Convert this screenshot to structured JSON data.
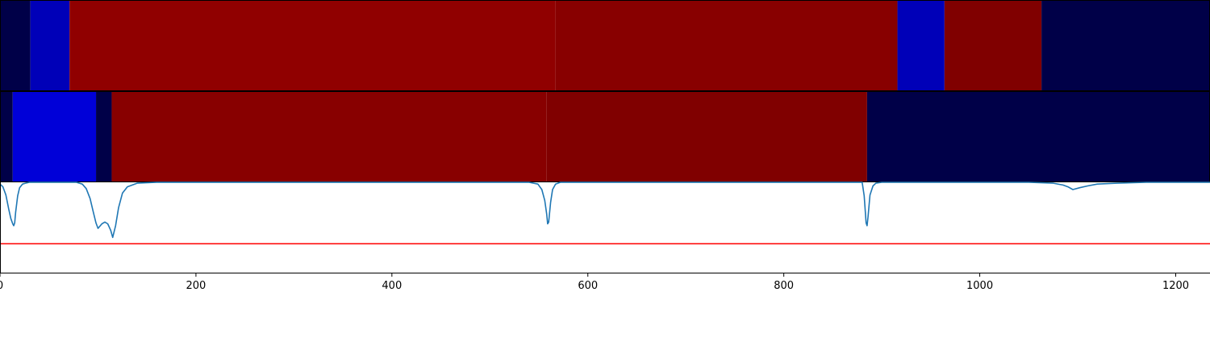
{
  "chart_data": [
    {
      "type": "heatmap",
      "xlim": [
        0,
        1235
      ],
      "segments": [
        {
          "start": 0,
          "end": 31,
          "color": "#000048"
        },
        {
          "start": 31,
          "end": 71,
          "color": "#0000b8"
        },
        {
          "start": 71,
          "end": 567,
          "color": "#900000"
        },
        {
          "start": 567,
          "end": 916,
          "color": "#880000"
        },
        {
          "start": 916,
          "end": 964,
          "color": "#0000b8"
        },
        {
          "start": 964,
          "end": 1063,
          "color": "#800000"
        },
        {
          "start": 1063,
          "end": 1235,
          "color": "#000048"
        }
      ]
    },
    {
      "type": "heatmap",
      "xlim": [
        0,
        1235
      ],
      "segments": [
        {
          "start": 0,
          "end": 13,
          "color": "#000048"
        },
        {
          "start": 13,
          "end": 98,
          "color": "#0000d8"
        },
        {
          "start": 98,
          "end": 114,
          "color": "#000048"
        },
        {
          "start": 114,
          "end": 558,
          "color": "#880000"
        },
        {
          "start": 558,
          "end": 885,
          "color": "#800000"
        },
        {
          "start": 885,
          "end": 1235,
          "color": "#000048"
        }
      ]
    },
    {
      "type": "line",
      "xlim": [
        0,
        1235
      ],
      "ylim": [
        -1.0,
        0.0
      ],
      "xticks": [
        "0",
        "200",
        "400",
        "600",
        "800",
        "1000",
        "1200"
      ],
      "xtick_values": [
        0,
        200,
        400,
        600,
        800,
        1000,
        1200
      ],
      "threshold": {
        "value": -0.68,
        "color": "#ff0000"
      },
      "series": [
        {
          "color": "#1f77b4",
          "x": [
            0,
            3,
            6,
            9,
            11,
            13,
            14,
            15,
            16,
            18,
            20,
            23,
            26,
            30,
            40,
            60,
            78,
            84,
            88,
            92,
            95,
            98,
            100,
            104,
            107,
            110,
            113,
            115,
            118,
            121,
            125,
            130,
            140,
            160,
            300,
            540,
            549,
            553,
            556,
            558,
            559,
            560,
            562,
            564,
            567,
            572,
            600,
            850,
            880,
            882,
            884,
            885,
            886,
            888,
            891,
            894,
            900,
            1050,
            1075,
            1085,
            1090,
            1095,
            1102,
            1110,
            1120,
            1140,
            1170,
            1235
          ],
          "y": [
            -0.02,
            -0.05,
            -0.14,
            -0.3,
            -0.4,
            -0.46,
            -0.48,
            -0.45,
            -0.33,
            -0.15,
            -0.06,
            -0.02,
            -0.01,
            0.0,
            0.0,
            0.0,
            0.0,
            -0.02,
            -0.07,
            -0.18,
            -0.32,
            -0.45,
            -0.51,
            -0.46,
            -0.44,
            -0.46,
            -0.53,
            -0.61,
            -0.48,
            -0.28,
            -0.12,
            -0.05,
            -0.01,
            0.0,
            0.0,
            0.0,
            -0.02,
            -0.08,
            -0.2,
            -0.35,
            -0.46,
            -0.44,
            -0.22,
            -0.08,
            -0.02,
            0.0,
            0.0,
            0.0,
            0.0,
            -0.15,
            -0.45,
            -0.48,
            -0.38,
            -0.14,
            -0.04,
            -0.01,
            0.0,
            0.0,
            -0.01,
            -0.03,
            -0.05,
            -0.08,
            -0.06,
            -0.04,
            -0.02,
            -0.01,
            0.0,
            0.0
          ]
        }
      ]
    }
  ]
}
